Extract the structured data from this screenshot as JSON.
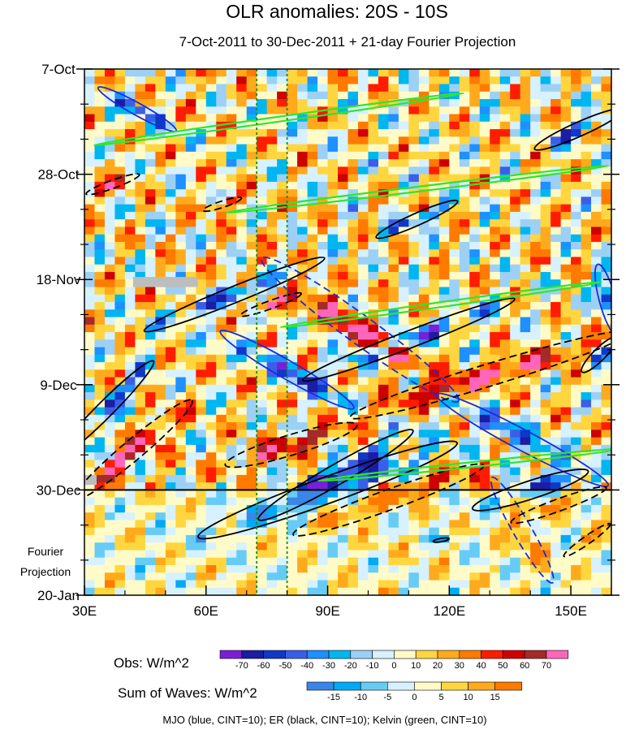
{
  "chart_data": {
    "type": "heatmap",
    "title": "OLR anomalies: 20S - 10S",
    "subtitle": "7-Oct-2011 to 30-Dec-2011 + 21-day Fourier Projection",
    "x_axis": {
      "range": [
        30,
        160
      ],
      "unit": "degrees East",
      "ticks": [
        30,
        60,
        90,
        120,
        150
      ],
      "tick_labels": [
        "30E",
        "60E",
        "90E",
        "120E",
        "150E"
      ]
    },
    "y_axis": {
      "range_days": [
        0,
        105
      ],
      "ticks_days": [
        0,
        21,
        42,
        63,
        84,
        105
      ],
      "tick_labels": [
        "7-Oct",
        "28-Oct",
        "18-Nov",
        "9-Dec",
        "30-Dec",
        "20-Jan"
      ],
      "direction": "time increases downward"
    },
    "projection_label": "Fourier Projection",
    "projection_start_day": 84,
    "vertical_reference_lines_lon": [
      72.5,
      80
    ],
    "obs_colorbar": {
      "label": "Obs: W/m^2",
      "levels": [
        -70,
        -60,
        -50,
        -40,
        -30,
        -20,
        -10,
        0,
        10,
        20,
        30,
        40,
        50,
        60,
        70
      ],
      "colors": [
        "#7b1fd6",
        "#1c1ca4",
        "#1038c8",
        "#3b5ee8",
        "#1e90ff",
        "#00b6f0",
        "#9dd0f5",
        "#d6f1ff",
        "#fffbc8",
        "#ffd640",
        "#ffaa1c",
        "#ff7a00",
        "#ff1c00",
        "#cc0000",
        "#a52a2a",
        "#ff66bb"
      ]
    },
    "waves_colorbar": {
      "label": "Sum of Waves: W/m^2",
      "levels": [
        -15,
        -10,
        -5,
        0,
        5,
        10,
        15
      ],
      "colors": [
        "#3a86e8",
        "#00aaf5",
        "#66ccf5",
        "#d6f1ff",
        "#fffbc8",
        "#ffd640",
        "#ffaa1c",
        "#ff7a00"
      ]
    },
    "contours": {
      "note": "MJO (blue, CINT=10); ER (black, CINT=10); Kelvin (green, CINT=10)",
      "MJO": {
        "color": "#1a2cdc",
        "cint": 10,
        "features": [
          {
            "sign": "negative",
            "center_lon": 43,
            "center_day": 8,
            "len_deg": 22,
            "width_deg": 3,
            "angle_deg": 29,
            "style": "solid"
          },
          {
            "sign": "negative",
            "center_lon": 80,
            "center_day": 60,
            "len_deg": 38,
            "width_deg": 4.5,
            "angle_deg": 30,
            "style": "solid"
          },
          {
            "sign": "positive",
            "center_lon": 98,
            "center_day": 52,
            "len_deg": 60,
            "width_deg": 7,
            "angle_deg": 36,
            "style": "dashed"
          },
          {
            "sign": "negative",
            "center_lon": 138,
            "center_day": 74,
            "len_deg": 48,
            "width_deg": 5,
            "angle_deg": 28,
            "style": "solid"
          },
          {
            "sign": "positive",
            "center_lon": 138,
            "center_day": 92,
            "len_deg": 30,
            "width_deg": 4.5,
            "angle_deg": 60,
            "style": "dashed"
          },
          {
            "sign": "negative",
            "center_lon": 159,
            "center_day": 46,
            "len_deg": 18,
            "width_deg": 4,
            "angle_deg": 75,
            "style": "solid"
          }
        ]
      },
      "ER": {
        "color": "#000000",
        "cint": 10,
        "features": [
          {
            "sign": "negative",
            "center_lon": 152,
            "center_day": 12,
            "len_deg": 24,
            "width_deg": 3.5,
            "angle_deg": -24,
            "style": "solid"
          },
          {
            "sign": "positive",
            "center_lon": 37,
            "center_day": 23,
            "len_deg": 14,
            "width_deg": 2,
            "angle_deg": -20,
            "style": "dashed"
          },
          {
            "sign": "positive",
            "center_lon": 64,
            "center_day": 27,
            "len_deg": 10,
            "width_deg": 1.6,
            "angle_deg": -18,
            "style": "dashed"
          },
          {
            "sign": "negative",
            "center_lon": 112,
            "center_day": 30,
            "len_deg": 22,
            "width_deg": 3,
            "angle_deg": -24,
            "style": "solid"
          },
          {
            "sign": "negative",
            "center_lon": 67,
            "center_day": 45,
            "len_deg": 48,
            "width_deg": 4,
            "angle_deg": -22,
            "style": "solid"
          },
          {
            "sign": "positive",
            "center_lon": 76,
            "center_day": 47,
            "len_deg": 16,
            "width_deg": 2,
            "angle_deg": -20,
            "style": "dashed"
          },
          {
            "sign": "negative",
            "center_lon": 110,
            "center_day": 54,
            "len_deg": 56,
            "width_deg": 4.2,
            "angle_deg": -21,
            "style": "solid"
          },
          {
            "sign": "positive",
            "center_lon": 130,
            "center_day": 61,
            "len_deg": 72,
            "width_deg": 5.5,
            "angle_deg": -17,
            "style": "dashed"
          },
          {
            "sign": "negative",
            "center_lon": 157,
            "center_day": 57,
            "len_deg": 12,
            "width_deg": 3,
            "angle_deg": -45,
            "style": "solid"
          },
          {
            "sign": "negative",
            "center_lon": 35,
            "center_day": 68,
            "len_deg": 34,
            "width_deg": 4,
            "angle_deg": -45,
            "style": "solid"
          },
          {
            "sign": "positive",
            "center_lon": 42,
            "center_day": 76,
            "len_deg": 38,
            "width_deg": 5,
            "angle_deg": -40,
            "style": "dashed"
          },
          {
            "sign": "positive",
            "center_lon": 81,
            "center_day": 75,
            "len_deg": 34,
            "width_deg": 5,
            "angle_deg": -17,
            "style": "dashed"
          },
          {
            "sign": "negative",
            "center_lon": 92,
            "center_day": 81,
            "len_deg": 44,
            "width_deg": 5,
            "angle_deg": -30,
            "style": "solid"
          },
          {
            "sign": "negative",
            "center_lon": 90,
            "center_day": 84,
            "len_deg": 68,
            "width_deg": 6.5,
            "angle_deg": -20,
            "style": "solid"
          },
          {
            "sign": "positive",
            "center_lon": 105,
            "center_day": 86,
            "len_deg": 50,
            "width_deg": 5,
            "angle_deg": -20,
            "style": "dashed"
          },
          {
            "sign": "negative",
            "center_lon": 140,
            "center_day": 84,
            "len_deg": 30,
            "width_deg": 4.5,
            "angle_deg": -18,
            "style": "solid"
          },
          {
            "sign": "positive",
            "center_lon": 147,
            "center_day": 87,
            "len_deg": 25,
            "width_deg": 3,
            "angle_deg": -20,
            "style": "dashed"
          },
          {
            "sign": "positive",
            "center_lon": 154,
            "center_day": 94,
            "len_deg": 14,
            "width_deg": 2,
            "angle_deg": -35,
            "style": "dashed"
          },
          {
            "sign": "negative",
            "center_lon": 118,
            "center_day": 94,
            "len_deg": 4,
            "width_deg": 0.8,
            "angle_deg": -10,
            "style": "solid"
          }
        ]
      },
      "Kelvin": {
        "color": "#2ee62e",
        "cint": 10,
        "features": [
          {
            "sign": "negative",
            "center_lon": 78,
            "center_day": 10,
            "len_deg": 92,
            "width_deg": 1.2,
            "angle_deg": -8,
            "style": "solid"
          },
          {
            "sign": "negative",
            "center_lon": 112,
            "center_day": 24,
            "len_deg": 95,
            "width_deg": 1.2,
            "angle_deg": -7,
            "style": "solid"
          },
          {
            "sign": "negative",
            "center_lon": 118,
            "center_day": 47,
            "len_deg": 80,
            "width_deg": 1.2,
            "angle_deg": -8,
            "style": "solid"
          },
          {
            "sign": "negative",
            "center_lon": 125,
            "center_day": 79,
            "len_deg": 75,
            "width_deg": 1.2,
            "angle_deg": -6,
            "style": "solid"
          }
        ]
      }
    },
    "dashed_wave_features": [
      {
        "type": "MJO",
        "note": "large positive envelope crossing Nov-Jan"
      },
      {
        "type": "ER",
        "note": "westward propagating pairs"
      }
    ]
  },
  "labels": {
    "title": "OLR anomalies: 20S - 10S",
    "subtitle": "7-Oct-2011 to 30-Dec-2011 + 21-day Fourier Projection",
    "fourier_line1": "Fourier",
    "fourier_line2": "Projection",
    "obs_label": "Obs: W/m^2",
    "waves_label": "Sum of Waves: W/m^2",
    "note": "MJO (blue, CINT=10); ER (black, CINT=10); Kelvin (green, CINT=10)"
  }
}
